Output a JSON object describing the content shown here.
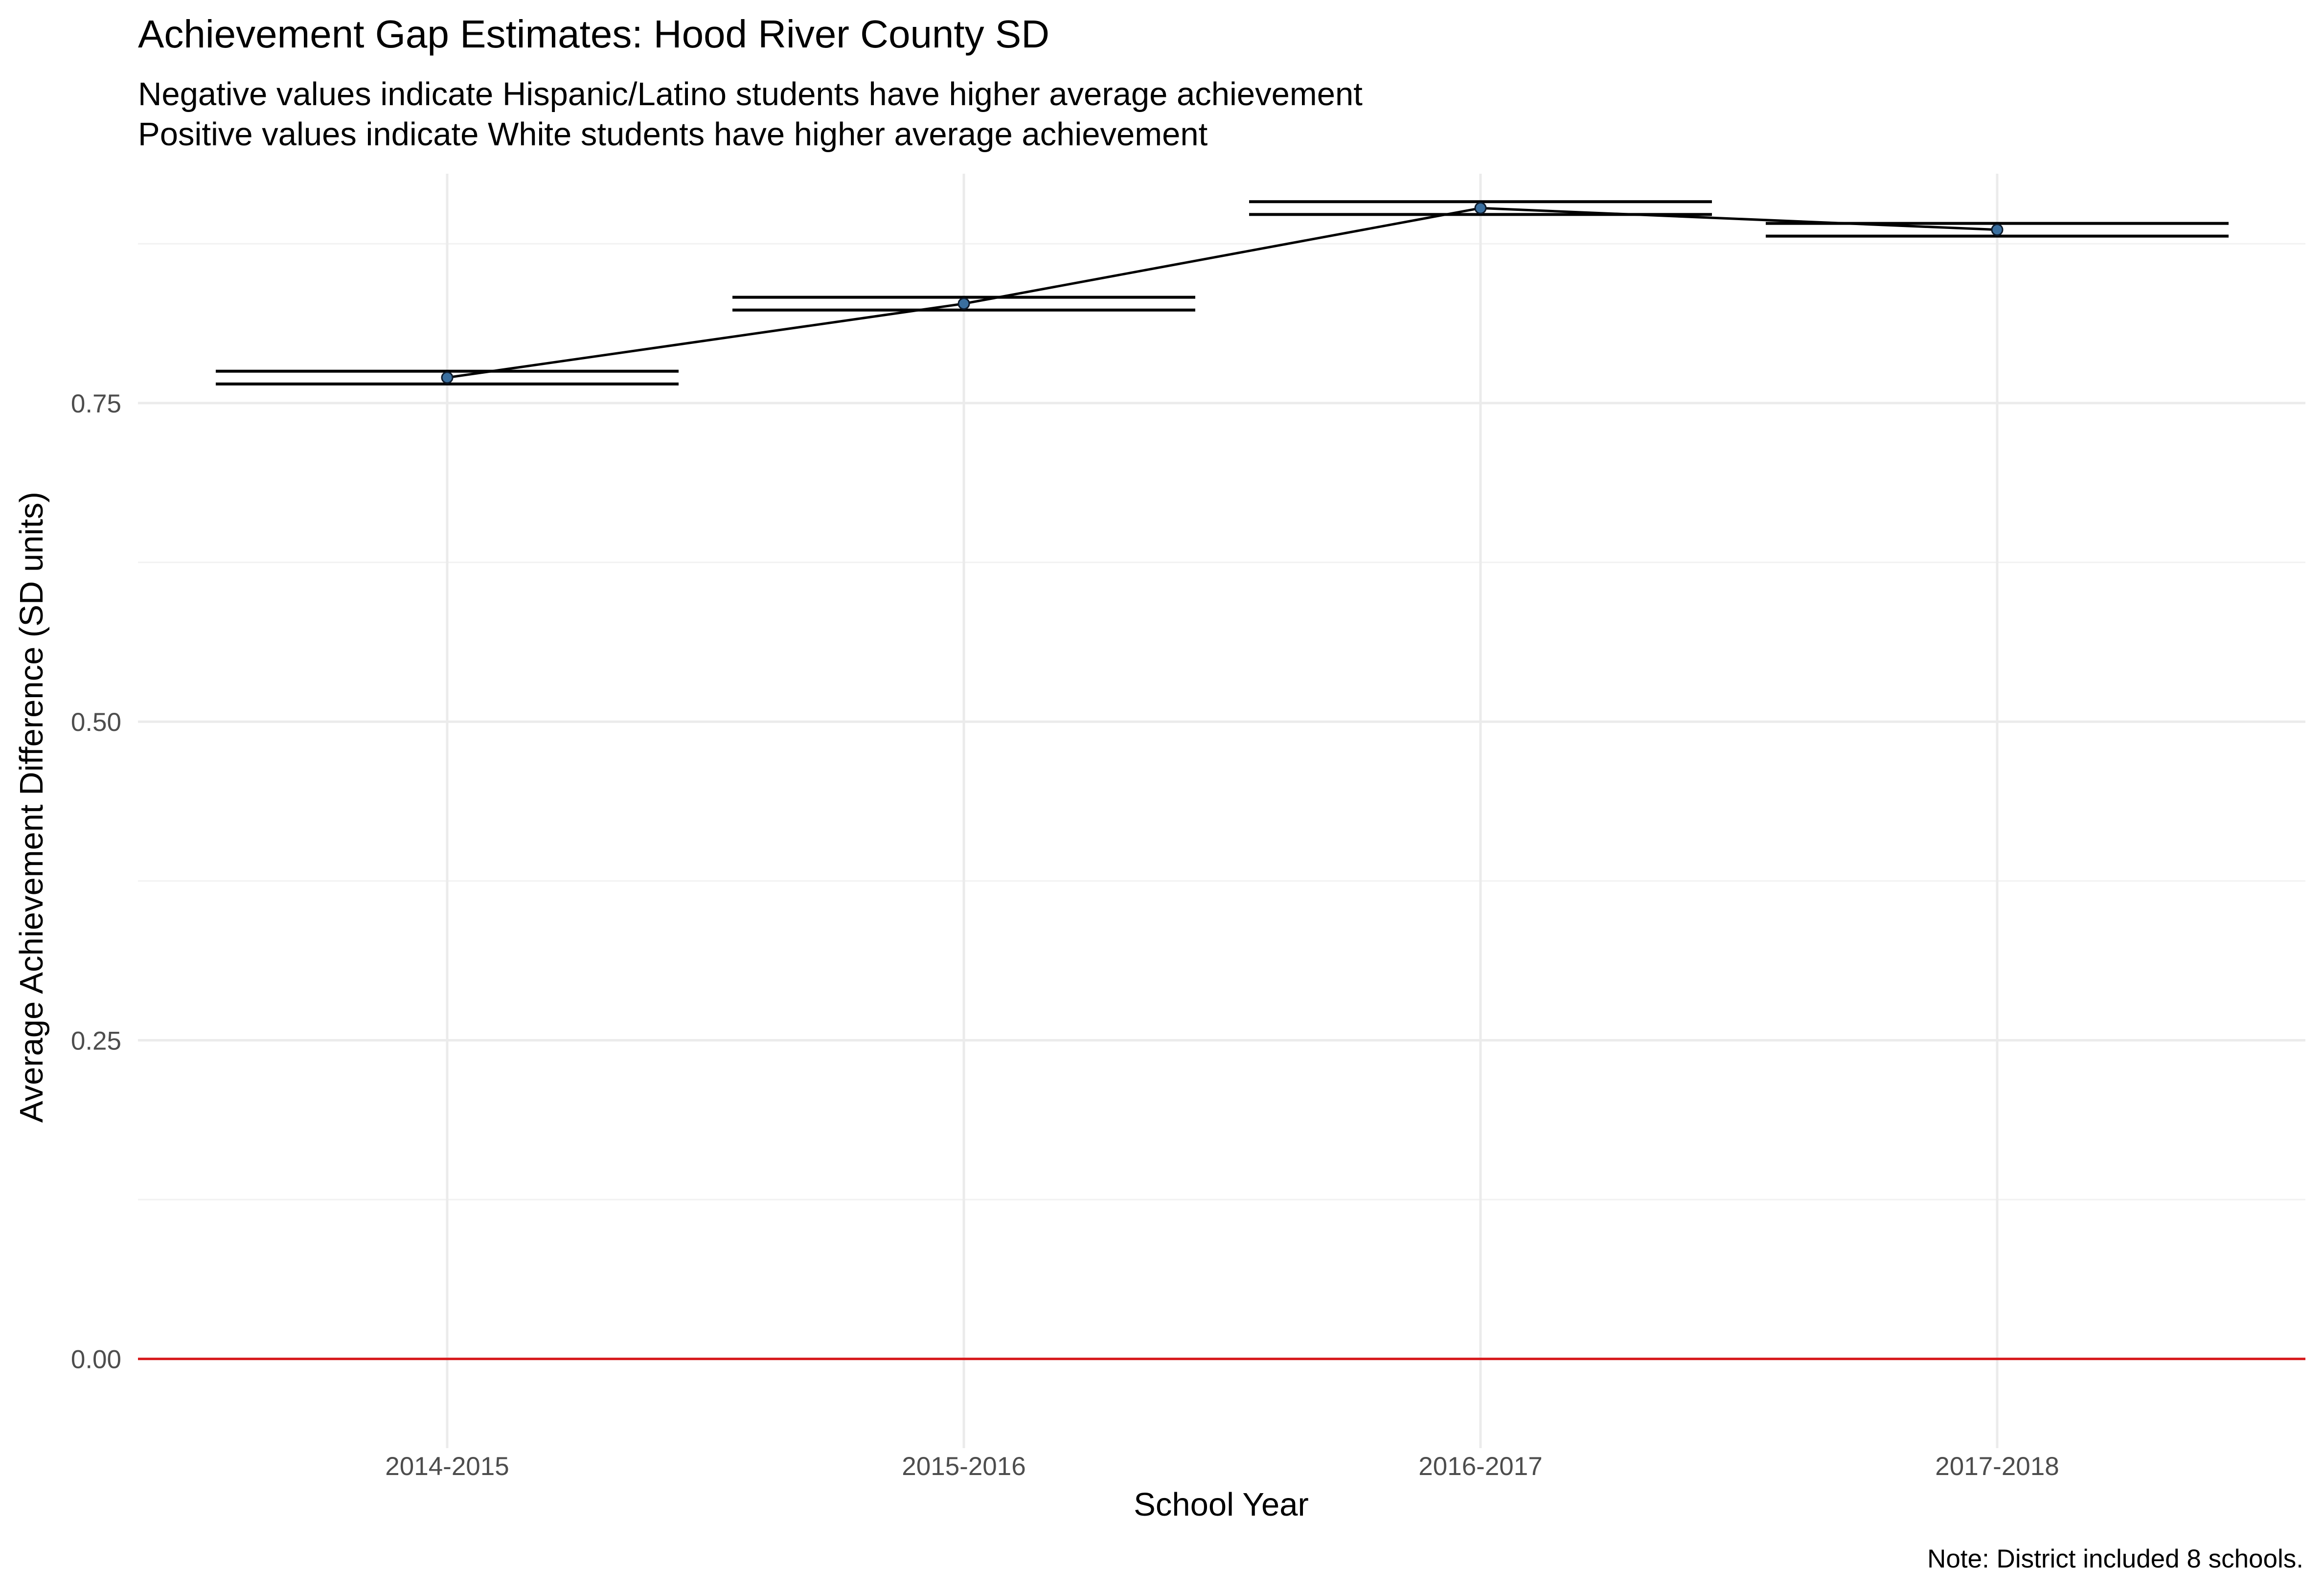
{
  "chart_data": {
    "type": "line",
    "title": "Achievement Gap Estimates: Hood River County SD",
    "subtitle_lines": [
      "Negative values indicate Hispanic/Latino students have higher average achievement",
      "Positive values indicate White students have higher average achievement"
    ],
    "xlabel": "School Year",
    "ylabel": "Average Achievement Difference (SD units)",
    "caption": "Note: District included 8 schools.",
    "categories": [
      "2014-2015",
      "2015-2016",
      "2016-2017",
      "2017-2018"
    ],
    "values": [
      0.77,
      0.828,
      0.903,
      0.886
    ],
    "ci_lower": [
      0.765,
      0.823,
      0.898,
      0.881
    ],
    "ci_upper": [
      0.775,
      0.833,
      0.908,
      0.891
    ],
    "ylim": [
      -0.07,
      0.93
    ],
    "yticks": [
      0.0,
      0.25,
      0.5,
      0.75
    ],
    "ytick_labels": [
      "0.00",
      "0.25",
      "0.50",
      "0.75"
    ],
    "reference_line": 0,
    "grid": true,
    "legend": "none",
    "colors": {
      "line": "#000000",
      "point": "#3a6f9f",
      "reference_line": "#d7191c",
      "grid": "#ebebeb"
    }
  }
}
